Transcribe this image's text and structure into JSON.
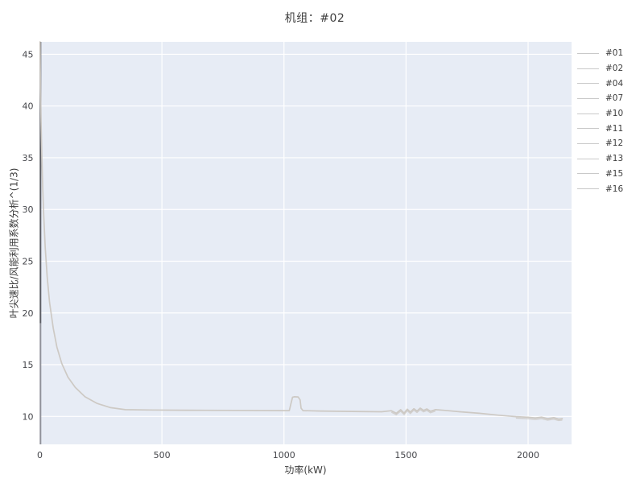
{
  "chart_data": {
    "type": "line",
    "title": "机组：#02",
    "xlabel": "功率(kW)",
    "ylabel": "叶尖速比/风能利用系数分析^(1/3)",
    "xlim": [
      0,
      2178
    ],
    "ylim": [
      7.3,
      46.2
    ],
    "x_ticks": [
      0,
      500,
      1000,
      1500,
      2000
    ],
    "y_ticks": [
      10,
      15,
      20,
      25,
      30,
      35,
      40,
      45
    ],
    "grid": true,
    "legend_position": "right-outside",
    "legend_entries": [
      "#01",
      "#02",
      "#04",
      "#07",
      "#10",
      "#11",
      "#12",
      "#13",
      "#15",
      "#16"
    ],
    "colors": {
      "plot_background": "#e7ecf5",
      "gridline": "#ffffff",
      "series_line": "#cbc7c1",
      "zero_spike_top": "#5c5d64",
      "zero_spike_bottom": "#90929a",
      "title_text": "#3d3d3d",
      "tick_text": "#45464b",
      "legend_swatch": "#c9c9c9",
      "legend_text": "#3c3c3c"
    },
    "zero_power_spike": {
      "x_kw": 0,
      "value_range": [
        7.3,
        46.2
      ]
    },
    "overlap_bands_kw": [
      [
        1430,
        1620
      ],
      [
        1900,
        2140
      ]
    ],
    "main_curve": [
      [
        1,
        46.2
      ],
      [
        2,
        43.5
      ],
      [
        3,
        41.5
      ],
      [
        5,
        38.5
      ],
      [
        8,
        35.5
      ],
      [
        12,
        32.0
      ],
      [
        16,
        29.3
      ],
      [
        22,
        26.3
      ],
      [
        30,
        23.5
      ],
      [
        40,
        21.0
      ],
      [
        55,
        18.5
      ],
      [
        70,
        16.7
      ],
      [
        90,
        15.1
      ],
      [
        115,
        13.8
      ],
      [
        145,
        12.8
      ],
      [
        185,
        11.9
      ],
      [
        235,
        11.25
      ],
      [
        290,
        10.85
      ],
      [
        350,
        10.65
      ],
      [
        450,
        10.62
      ],
      [
        600,
        10.6
      ],
      [
        800,
        10.58
      ],
      [
        1000,
        10.56
      ],
      [
        1022,
        10.56
      ],
      [
        1028,
        11.2
      ],
      [
        1035,
        11.85
      ],
      [
        1042,
        11.9
      ],
      [
        1058,
        11.88
      ],
      [
        1066,
        11.6
      ],
      [
        1070,
        10.8
      ],
      [
        1078,
        10.56
      ],
      [
        1150,
        10.52
      ],
      [
        1280,
        10.48
      ],
      [
        1400,
        10.45
      ],
      [
        1440,
        10.55
      ],
      [
        1460,
        10.3
      ],
      [
        1478,
        10.65
      ],
      [
        1492,
        10.32
      ],
      [
        1505,
        10.7
      ],
      [
        1518,
        10.42
      ],
      [
        1532,
        10.75
      ],
      [
        1545,
        10.52
      ],
      [
        1558,
        10.8
      ],
      [
        1572,
        10.58
      ],
      [
        1585,
        10.72
      ],
      [
        1600,
        10.5
      ],
      [
        1620,
        10.65
      ],
      [
        1660,
        10.58
      ],
      [
        1720,
        10.45
      ],
      [
        1800,
        10.3
      ],
      [
        1880,
        10.12
      ],
      [
        1950,
        9.98
      ],
      [
        2000,
        9.92
      ],
      [
        2030,
        9.85
      ],
      [
        2055,
        9.93
      ],
      [
        2080,
        9.78
      ],
      [
        2105,
        9.88
      ],
      [
        2125,
        9.74
      ],
      [
        2140,
        9.78
      ]
    ]
  }
}
